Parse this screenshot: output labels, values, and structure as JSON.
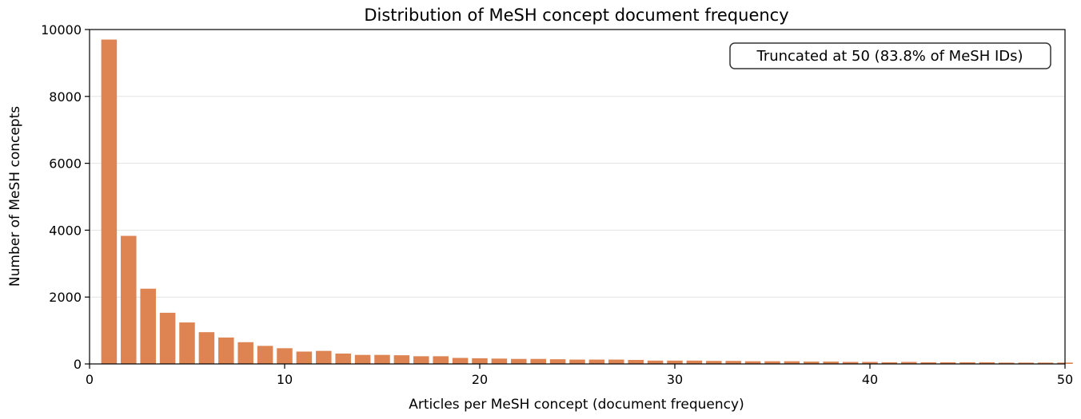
{
  "chart_data": {
    "type": "bar",
    "title": "Distribution of MeSH concept document frequency",
    "xlabel": "Articles per MeSH concept (document frequency)",
    "ylabel": "Number of MeSH concepts",
    "xlim": [
      0,
      50
    ],
    "ylim": [
      0,
      10000
    ],
    "xticks": [
      0,
      10,
      20,
      30,
      40,
      50
    ],
    "yticks": [
      0,
      2000,
      4000,
      6000,
      8000,
      10000
    ],
    "x_tick_labels": [
      "0",
      "10",
      "20",
      "30",
      "40",
      "50"
    ],
    "y_tick_labels": [
      "0",
      "2000",
      "4000",
      "6000",
      "8000",
      "10000"
    ],
    "grid": "horizontal",
    "bar_color": "#dd8452",
    "annotation": "Truncated at 50 (83.8% of MeSH IDs)",
    "annotation_placement": "top-right",
    "x": [
      1,
      2,
      3,
      4,
      5,
      6,
      7,
      8,
      9,
      10,
      11,
      12,
      13,
      14,
      15,
      16,
      17,
      18,
      19,
      20,
      21,
      22,
      23,
      24,
      25,
      26,
      27,
      28,
      29,
      30,
      31,
      32,
      33,
      34,
      35,
      36,
      37,
      38,
      39,
      40,
      41,
      42,
      43,
      44,
      45,
      46,
      47,
      48,
      49,
      50
    ],
    "values": [
      9700,
      3830,
      2250,
      1530,
      1240,
      950,
      790,
      650,
      540,
      470,
      370,
      390,
      310,
      270,
      270,
      260,
      230,
      230,
      180,
      170,
      160,
      150,
      150,
      140,
      130,
      130,
      130,
      120,
      100,
      100,
      100,
      90,
      90,
      80,
      80,
      80,
      70,
      70,
      60,
      60,
      50,
      60,
      50,
      50,
      50,
      50,
      40,
      40,
      40,
      40
    ]
  }
}
